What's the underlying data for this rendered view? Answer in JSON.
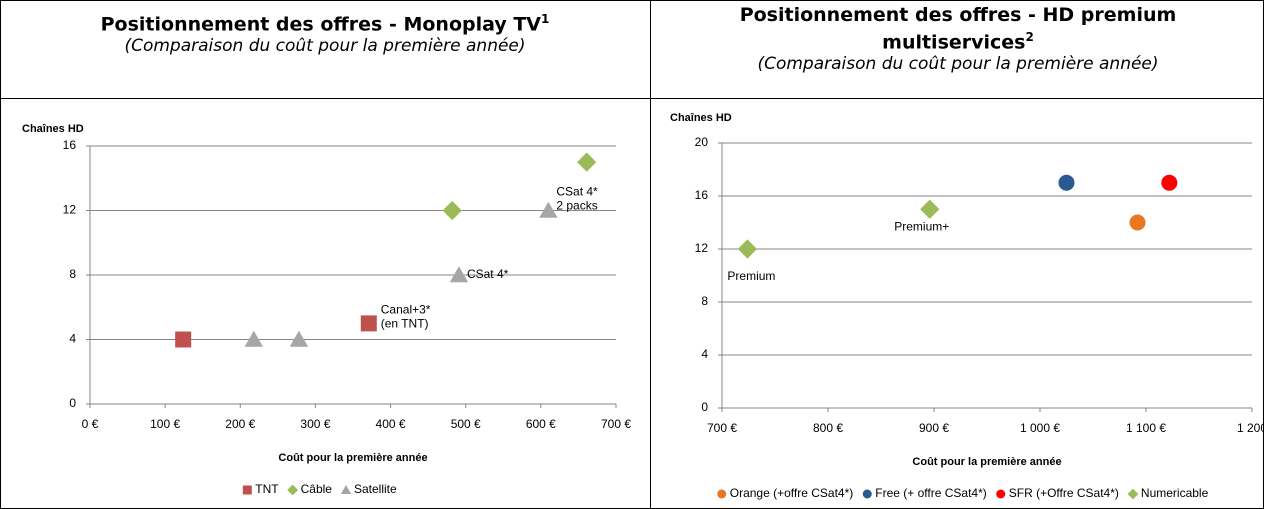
{
  "chart_data": [
    {
      "type": "scatter",
      "title": "Positionnement des offres - Monoplay TV",
      "title_note": "1",
      "subtitle": "(Comparaison du coût pour la première année)",
      "y_label": "Chaînes HD",
      "x_label": "Coût pour la première année",
      "xlim": [
        0,
        700
      ],
      "xticks": [
        {
          "value": 0,
          "label": "0 €"
        },
        {
          "value": 100,
          "label": "100 €"
        },
        {
          "value": 200,
          "label": "200 €"
        },
        {
          "value": 300,
          "label": "300 €"
        },
        {
          "value": 400,
          "label": "400 €"
        },
        {
          "value": 500,
          "label": "500 €"
        },
        {
          "value": 600,
          "label": "600 €"
        },
        {
          "value": 700,
          "label": "700 €"
        }
      ],
      "ylim": [
        0,
        16
      ],
      "yticks": [
        0,
        4,
        8,
        12,
        16
      ],
      "grid": true,
      "series": [
        {
          "name": "TNT",
          "color": "#c0504d",
          "marker": "square",
          "x": [
            124,
            371
          ],
          "values": [
            4,
            5
          ],
          "labels": [
            null,
            [
              "Canal+3*",
              "(en TNT)"
            ]
          ]
        },
        {
          "name": "Câble",
          "color": "#9bbb59",
          "marker": "diamond",
          "x": [
            482,
            661
          ],
          "values": [
            12,
            15
          ],
          "labels": [
            null,
            null
          ]
        },
        {
          "name": "Satellite",
          "color": "#a6a6a6",
          "marker": "triangle",
          "x": [
            218,
            278,
            491,
            610
          ],
          "values": [
            4,
            4,
            8,
            12
          ],
          "labels": [
            null,
            null,
            [
              "CSat 4*"
            ],
            [
              "CSat 4*",
              "2 packs"
            ]
          ]
        }
      ]
    },
    {
      "type": "scatter",
      "title": "Positionnement des offres - HD premium multiservices",
      "title_note": "2",
      "subtitle": "(Comparaison du coût pour la première année)",
      "y_label": "Chaînes HD",
      "x_label": "Coût pour la première année",
      "xlim": [
        700,
        1200
      ],
      "xticks": [
        {
          "value": 700,
          "label": "700 €"
        },
        {
          "value": 800,
          "label": "800 €"
        },
        {
          "value": 900,
          "label": "900 €"
        },
        {
          "value": 1000,
          "label": "1 000 €"
        },
        {
          "value": 1100,
          "label": "1 100 €"
        },
        {
          "value": 1200,
          "label": "1 200"
        }
      ],
      "ylim": [
        0,
        20
      ],
      "yticks": [
        0,
        4,
        8,
        12,
        16,
        20
      ],
      "grid": true,
      "series": [
        {
          "name": "Orange (+offre CSat4*)",
          "color": "#e87722",
          "marker": "circle",
          "x": [
            1092
          ],
          "values": [
            14
          ],
          "labels": [
            null
          ]
        },
        {
          "name": "Free (+ offre CSat4*)",
          "color": "#2a5a8f",
          "marker": "circle",
          "x": [
            1025
          ],
          "values": [
            17
          ],
          "labels": [
            null
          ]
        },
        {
          "name": "SFR (+Offre CSat4*)",
          "color": "#ff0000",
          "marker": "circle",
          "x": [
            1122
          ],
          "values": [
            17
          ],
          "labels": [
            null
          ]
        },
        {
          "name": "Numericable",
          "color": "#9bbb59",
          "marker": "diamond",
          "x": [
            724,
            896
          ],
          "values": [
            12,
            15
          ],
          "labels": [
            [
              "Premium"
            ],
            [
              "Premium+"
            ]
          ]
        }
      ]
    }
  ]
}
